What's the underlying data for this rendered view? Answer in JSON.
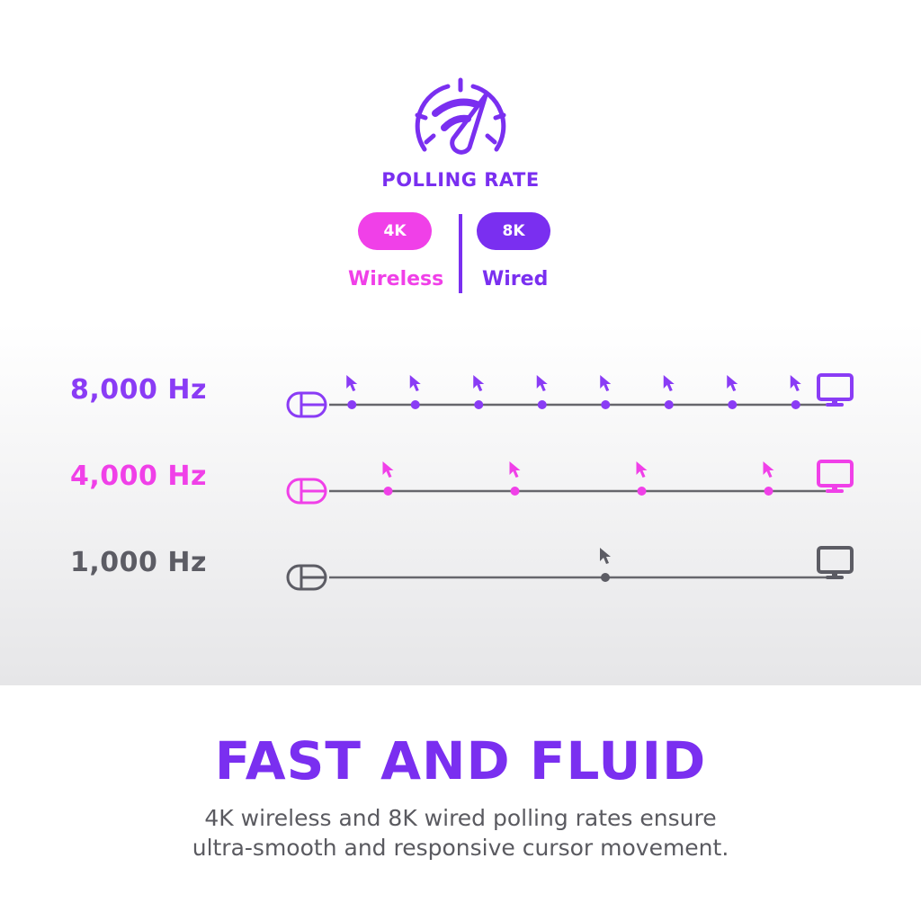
{
  "header": {
    "icon": "speedometer-signal-icon",
    "title": "POLLING RATE",
    "options": [
      {
        "badge": "4K",
        "label": "Wireless",
        "color": "#f040e8"
      },
      {
        "badge": "8K",
        "label": "Wired",
        "color": "#7a2ff0"
      }
    ]
  },
  "rows": [
    {
      "label": "8,000 Hz",
      "color": "#8a3cf5",
      "cursor_count": 8
    },
    {
      "label": "4,000 Hz",
      "color": "#f040e8",
      "cursor_count": 4
    },
    {
      "label": "1,000 Hz",
      "color": "#5c5c64",
      "cursor_count": 1
    }
  ],
  "line_color": "#66666c",
  "footer": {
    "title": "FAST AND FLUID",
    "subtitle_line1": "4K wireless and 8K wired polling rates ensure",
    "subtitle_line2": "ultra-smooth and responsive cursor movement."
  }
}
